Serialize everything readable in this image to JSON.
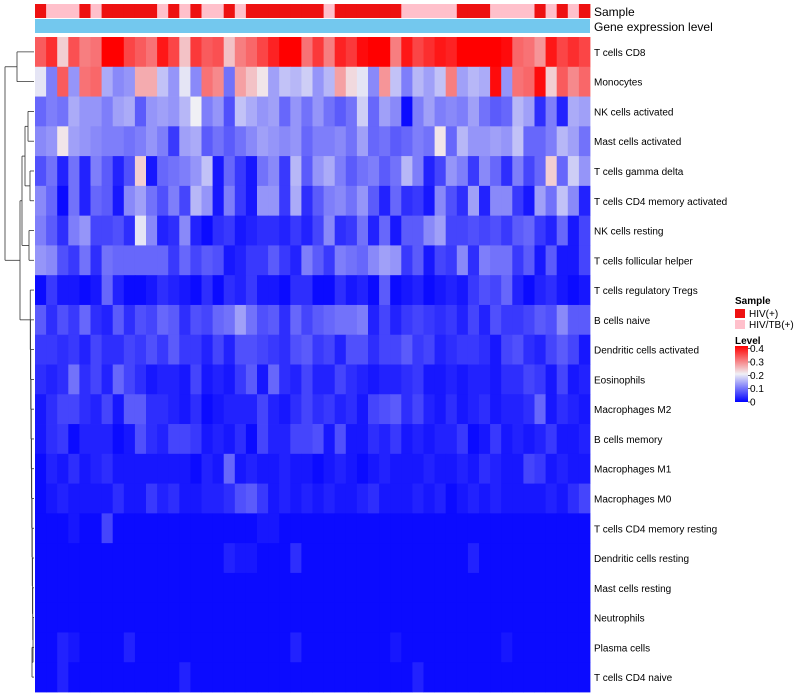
{
  "chart_data": {
    "type": "heatmap",
    "annotation_rows": [
      "Sample",
      "Gene expression level"
    ],
    "legend": {
      "sample_title": "Sample",
      "sample_entries": [
        {
          "label": "HIV(+)",
          "color": "#ee1111"
        },
        {
          "label": "HIV/TB(+)",
          "color": "#ffc0cb"
        }
      ],
      "level_title": "Level",
      "level_ticks": [
        "0.4",
        "0.3",
        "0.2",
        "0.1",
        "0"
      ],
      "level_tick_values": [
        0.4,
        0.3,
        0.2,
        0.1,
        0
      ],
      "level_range": [
        0,
        0.42
      ]
    },
    "colors": {
      "low": "#0000ff",
      "mid": "#f0f0f5",
      "high": "#ff0000",
      "hiv": "#ee1111",
      "hivtb": "#ffc0cb",
      "gene_expression": "#73c8ee"
    },
    "sample_groups": "1,0,0,0,1,0,1,1,1,1,1,0,1,0,1,0,0,1,0,1,1,1,1,1,1,1,0,1,1,1,1,1,1,0,0,0,0,0,1,1,1,0,0,0,0,1,0,1,0,1",
    "rows": [
      "T cells CD8",
      "Monocytes",
      "NK cells activated",
      "Mast cells activated",
      "T cells gamma delta",
      "T cells CD4 memory activated",
      "NK cells resting",
      "T cells follicular helper",
      "T cells regulatory  Tregs",
      "B cells naive",
      "Dendritic cells activated",
      "Eosinophils",
      "Macrophages M2",
      "B cells memory",
      "Macrophages M1",
      "Macrophages M0",
      "T cells CD4 memory resting",
      "Dendritic cells resting",
      "Mast cells resting",
      "Neutrophils",
      "Plasma cells",
      "T cells CD4 naive"
    ],
    "values": [
      "34,38,24,35,31,32,42,42,36,34,32,40,36,25,37,34,35,25,31,33,36,39,42,42,32,37,31,39,37,41,42,42,31,40,36,38,40,39,42,42,42,42,41,33,32,29,40,36,38,36",
      "20,11,34,13,32,33,15,12,13,27,27,17,13,20,12,32,30,10,28,25,22,14,17,16,18,13,16,28,23,20,12,29,17,11,16,14,17,31,14,16,15,41,13,32,33,41,24,34,30,33",
      "9,11,10,15,13,13,11,14,15,8,13,14,13,16,21,11,13,7,17,15,13,14,9,13,10,13,10,8,10,18,9,14,12,1,11,14,11,12,11,14,10,8,9,16,14,4,11,3,15,14",
      "12,13,22,14,13,12,11,11,10,11,13,11,5,14,15,8,10,8,10,12,14,13,12,13,9,11,11,12,10,14,9,10,8,9,11,10,22,9,16,13,13,14,13,17,9,9,11,16,14,10",
      "7,10,3,10,3,11,8,3,7,24,2,9,10,11,13,17,2,9,5,2,10,12,5,16,8,13,15,11,8,10,11,8,10,16,11,3,6,13,11,5,12,9,4,11,6,9,24,9,18,13",
      "12,9,1,10,3,9,8,2,12,14,10,7,11,6,16,13,2,11,5,2,13,13,5,15,4,8,11,12,10,13,8,3,9,4,5,2,12,7,4,14,3,12,12,5,2,14,10,17,12,3",
      "11,8,4,11,13,6,6,7,4,20,12,3,4,12,3,1,4,5,2,3,4,4,3,5,3,6,12,4,5,10,3,9,2,8,8,12,14,6,6,7,6,7,5,8,9,5,3,9,2,6",
      "13,12,7,5,10,4,10,9,9,9,9,9,5,9,6,8,7,2,3,5,5,8,5,3,11,8,5,11,10,9,12,14,13,5,8,2,6,5,12,4,11,10,10,5,8,2,8,2,2,6",
      "1,5,2,2,1,2,9,3,1,1,2,4,3,2,1,4,1,4,3,5,2,2,1,4,4,1,1,4,2,3,1,8,1,2,3,1,2,3,2,5,7,6,9,3,1,3,4,2,1,2",
      "8,4,7,5,9,4,3,8,4,7,6,9,8,4,7,6,9,10,14,10,7,8,4,9,6,8,9,10,10,11,3,6,3,5,6,5,4,5,3,6,3,7,5,5,6,8,7,12,8,8",
      "5,5,4,5,3,6,4,4,6,5,7,5,8,5,5,3,6,3,7,7,6,5,4,7,8,5,6,3,7,7,4,6,6,8,5,6,3,4,5,5,4,2,6,7,4,3,6,8,6,2",
      "4,3,4,10,4,6,3,9,6,4,2,3,3,2,6,2,3,2,5,8,2,9,4,3,6,3,3,6,4,3,2,3,3,4,5,2,2,3,2,3,3,2,4,4,6,5,2,6,2,3",
      "2,4,6,6,4,3,6,2,8,8,4,4,3,2,4,1,2,3,3,3,6,3,2,4,6,4,5,3,4,2,6,7,8,4,6,3,2,4,2,3,4,2,3,3,4,9,2,4,3,2",
      "2,4,5,1,3,3,3,1,2,7,4,3,6,6,5,2,3,2,4,1,6,3,3,6,6,7,2,7,2,2,4,3,5,2,3,2,3,3,5,1,2,5,2,3,2,3,5,2,2,3",
      "1,3,2,4,2,3,4,2,2,2,2,2,2,2,1,3,2,9,2,3,2,2,3,2,2,1,2,3,2,1,2,3,2,2,2,3,2,2,3,2,4,3,2,2,6,5,2,3,2,2",
      "1,2,3,2,2,2,2,4,2,2,5,3,4,2,2,3,3,4,7,8,5,2,3,2,3,2,3,2,2,3,4,2,2,2,3,2,3,1,2,3,2,3,2,2,2,2,3,2,4,6",
      "1,1,1,2,1,1,6,1,1,1,1,1,1,1,1,1,1,1,1,1,2,2,1,1,1,1,1,1,1,1,1,1,1,1,1,1,1,1,1,1,1,1,1,1,1,1,1,1,1,1",
      "1,1,1,1,1,1,1,1,1,1,1,1,1,1,1,1,1,3,2,2,1,1,1,4,1,1,1,1,1,1,1,1,1,1,1,1,1,1,1,3,1,1,1,1,1,1,1,1,1,1",
      "1,1,1,1,1,1,1,1,1,1,1,1,1,1,1,1,1,1,1,1,1,1,1,1,1,1,1,1,1,1,1,1,1,1,1,1,1,1,1,1,1,1,1,1,1,1,1,1,1,1",
      "1,1,1,1,1,1,1,1,1,1,1,1,1,1,1,1,1,1,1,1,1,1,1,1,1,1,1,1,1,1,1,1,1,1,1,1,1,1,1,1,1,1,1,1,1,1,1,1,1,1",
      "1,1,3,2,1,1,1,1,3,1,1,1,1,1,1,1,1,1,1,1,1,1,1,3,1,1,1,1,1,1,1,1,2,1,1,1,1,1,1,1,1,1,2,1,1,1,1,1,1,1",
      "1,1,3,1,1,1,1,1,1,1,1,1,1,3,1,1,1,1,1,1,1,1,1,1,1,1,1,1,1,1,1,1,1,1,3,1,1,1,1,1,1,1,1,1,1,1,1,1,1,1"
    ],
    "value_scale": 0.01
  }
}
